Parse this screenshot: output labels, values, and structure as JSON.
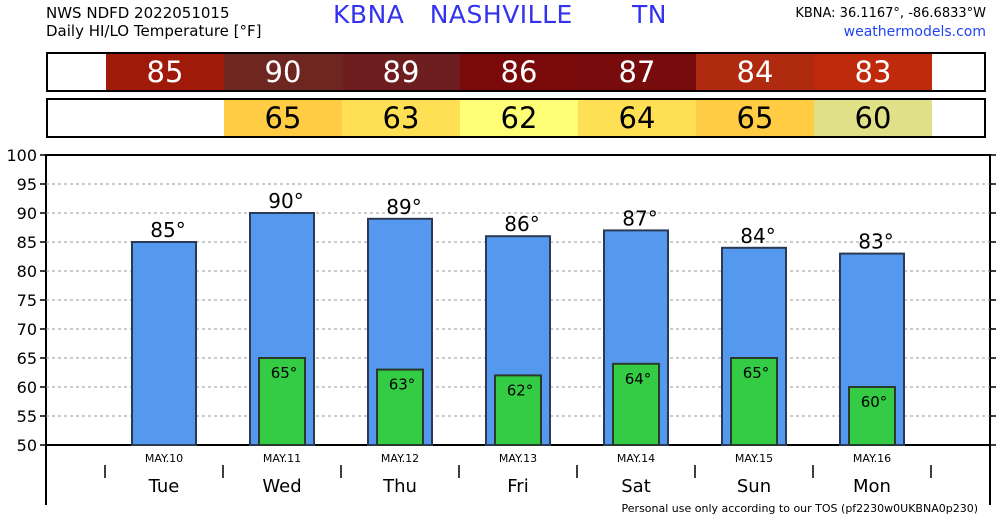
{
  "header": {
    "line1": "NWS NDFD 2022051015",
    "line2": "Daily HI/LO Temperature [°F]",
    "station": "KBNA",
    "city": "NASHVILLE",
    "state": "TN",
    "coords": "KBNA: 36.1167°, -86.6833°W",
    "site": "weathermodels.com"
  },
  "footer": "Personal use only according to our TOS (pf2230w0UKBNA0p230)",
  "colors": {
    "hi_bar": "#5599ee",
    "lo_bar": "#33cc44",
    "hi_cells": [
      "#a01a0a",
      "#6e2620",
      "#6e1e1e",
      "#7a0a0a",
      "#780c0c",
      "#b02a10",
      "#c02a0c"
    ],
    "lo_cells": [
      "#ffcc44",
      "#ffe055",
      "#ffff77",
      "#ffe055",
      "#ffcc44",
      "#e0e088"
    ]
  },
  "chart_data": {
    "type": "bar",
    "categories": [
      "Tue",
      "Wed",
      "Thu",
      "Fri",
      "Sat",
      "Sun",
      "Mon"
    ],
    "dates": [
      "MAY.10",
      "MAY.11",
      "MAY.12",
      "MAY.13",
      "MAY.14",
      "MAY.15",
      "MAY.16"
    ],
    "series": [
      {
        "values": [
          85,
          90,
          89,
          86,
          87,
          84,
          83
        ]
      },
      {
        "values": [
          null,
          65,
          63,
          62,
          64,
          65,
          60
        ]
      }
    ],
    "hi_labels": [
      "85°",
      "90°",
      "89°",
      "86°",
      "87°",
      "84°",
      "83°"
    ],
    "lo_labels": [
      "",
      "65°",
      "63°",
      "62°",
      "64°",
      "65°",
      "60°"
    ],
    "hi_strip": [
      "85",
      "90",
      "89",
      "86",
      "87",
      "84",
      "83"
    ],
    "lo_strip": [
      "",
      "65",
      "63",
      "62",
      "64",
      "65",
      "60"
    ],
    "yticks": [
      "50",
      "55",
      "60",
      "65",
      "70",
      "75",
      "80",
      "85",
      "90",
      "95",
      "100"
    ],
    "ylim": [
      50,
      100
    ],
    "grid": true,
    "title": "Daily HI/LO Temperature [°F]",
    "xlabel": "",
    "ylabel": ""
  }
}
